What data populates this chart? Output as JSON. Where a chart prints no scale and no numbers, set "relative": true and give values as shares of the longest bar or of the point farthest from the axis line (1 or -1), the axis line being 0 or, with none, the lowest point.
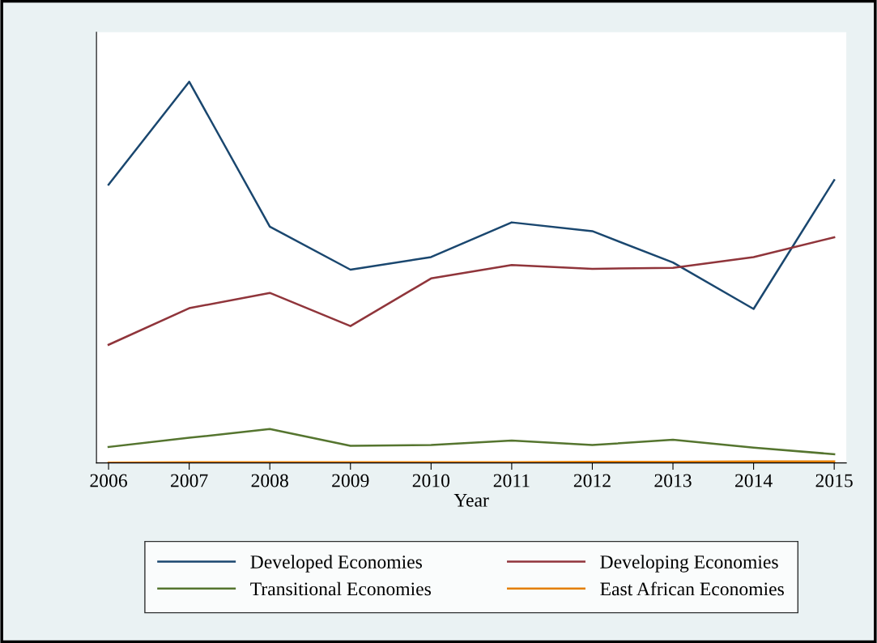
{
  "chart_data": {
    "type": "line",
    "relative": true,
    "xlabel": "Year",
    "x": [
      2006,
      2007,
      2008,
      2009,
      2010,
      2011,
      2012,
      2013,
      2014,
      2015
    ],
    "xlim": [
      2005.85,
      2015.15
    ],
    "xticks": [
      2006,
      2007,
      2008,
      2009,
      2010,
      2011,
      2012,
      2013,
      2014,
      2015
    ],
    "series": [
      {
        "name": "Developed Economies",
        "color": "#1a476f",
        "values": [
          0.73,
          1,
          0.62,
          0.507,
          0.54,
          0.631,
          0.608,
          0.526,
          0.404,
          0.742
        ]
      },
      {
        "name": "Developing Economies",
        "color": "#90353b",
        "values": [
          0.31,
          0.406,
          0.446,
          0.359,
          0.484,
          0.519,
          0.509,
          0.512,
          0.54,
          0.592
        ]
      },
      {
        "name": "Transitional Economies",
        "color": "#55752f",
        "values": [
          0.042,
          0.066,
          0.089,
          0.045,
          0.047,
          0.059,
          0.047,
          0.061,
          0.04,
          0.023
        ]
      },
      {
        "name": "East African Economies",
        "color": "#e37e00",
        "values": [
          0.001,
          0.002,
          0.002,
          0.002,
          0.002,
          0.002,
          0.003,
          0.003,
          0.004,
          0.004
        ]
      }
    ],
    "grid": false,
    "legend": "bottom",
    "marker": "none",
    "line_style": "solid"
  }
}
